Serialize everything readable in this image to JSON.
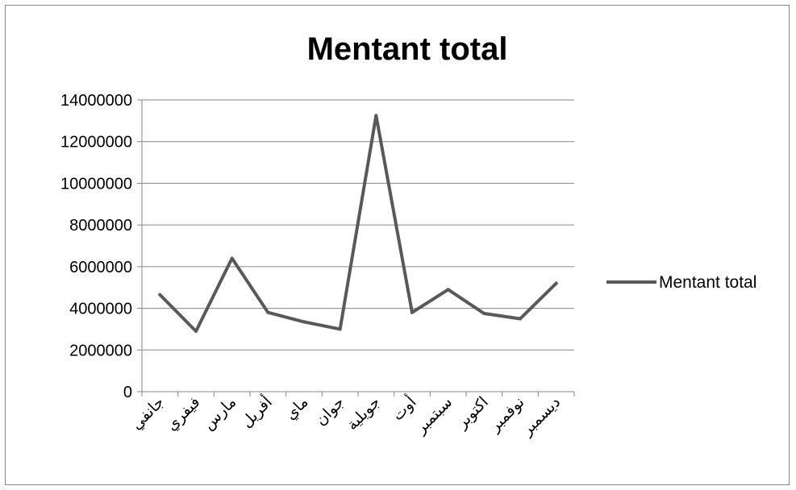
{
  "chart_data": {
    "type": "line",
    "title": "Mentant total",
    "xlabel": "",
    "ylabel": "",
    "ylim": [
      0,
      14000000
    ],
    "yticks": [
      "0",
      "2000000",
      "4000000",
      "6000000",
      "8000000",
      "10000000",
      "12000000",
      "14000000"
    ],
    "grid": true,
    "legend_position": "right",
    "categories": [
      "جانفي",
      "فيفري",
      "مارس",
      "أفريل",
      "ماي",
      "جوان",
      "جويلية",
      "أوت",
      "سبتمبر",
      "اكتوبر",
      "نوفمبر",
      "ديسمبر"
    ],
    "series": [
      {
        "name": "Mentant total",
        "color": "#595959",
        "values": [
          4650000,
          2900000,
          6400000,
          3800000,
          3350000,
          3000000,
          13250000,
          3800000,
          4900000,
          3750000,
          3500000,
          5200000
        ]
      }
    ]
  }
}
